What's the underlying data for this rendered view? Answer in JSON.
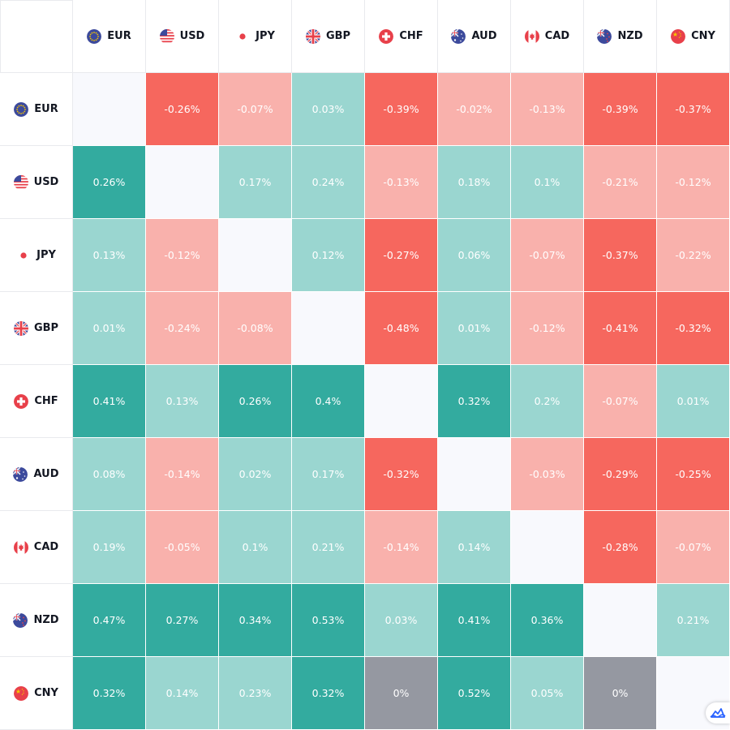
{
  "chart_data": {
    "type": "heatmap",
    "currencies": [
      "EUR",
      "USD",
      "JPY",
      "GBP",
      "CHF",
      "AUD",
      "CAD",
      "NZD",
      "CNY"
    ],
    "values": [
      [
        null,
        -0.26,
        -0.07,
        0.03,
        -0.39,
        -0.02,
        -0.13,
        -0.39,
        -0.37
      ],
      [
        0.26,
        null,
        0.17,
        0.24,
        -0.13,
        0.18,
        0.1,
        -0.21,
        -0.12
      ],
      [
        0.13,
        -0.12,
        null,
        0.12,
        -0.27,
        0.06,
        -0.07,
        -0.37,
        -0.22
      ],
      [
        0.01,
        -0.24,
        -0.08,
        null,
        -0.48,
        0.01,
        -0.12,
        -0.41,
        -0.32
      ],
      [
        0.41,
        0.13,
        0.26,
        0.4,
        null,
        0.32,
        0.2,
        -0.07,
        0.01
      ],
      [
        0.08,
        -0.14,
        0.02,
        0.17,
        -0.32,
        null,
        -0.03,
        -0.29,
        -0.25
      ],
      [
        0.19,
        -0.05,
        0.1,
        0.21,
        -0.14,
        0.14,
        null,
        -0.28,
        -0.07
      ],
      [
        0.47,
        0.27,
        0.34,
        0.53,
        0.03,
        0.41,
        0.36,
        null,
        0.21
      ],
      [
        0.32,
        0.14,
        0.23,
        0.32,
        0,
        0.52,
        0.05,
        0,
        null
      ]
    ],
    "value_suffix": "%",
    "colors": {
      "strong_positive": "#33ab9f",
      "positive": "#9ad6d0",
      "negative": "#f9b1ac",
      "strong_negative": "#f6675e",
      "zero": "#9598a1",
      "diagonal": "#f8f9fd",
      "header_bg": "#ffffff",
      "header_text": "#131722"
    },
    "strong_threshold": 0.25,
    "flag_icons": {
      "EUR": "eu-flag-icon",
      "USD": "us-flag-icon",
      "JPY": "japan-flag-icon",
      "GBP": "uk-flag-icon",
      "CHF": "swiss-flag-icon",
      "AUD": "australia-flag-icon",
      "CAD": "canada-flag-icon",
      "NZD": "new-zealand-flag-icon",
      "CNY": "china-flag-icon"
    }
  },
  "widget": {
    "badge_icon": "tradingview-logo-icon"
  }
}
